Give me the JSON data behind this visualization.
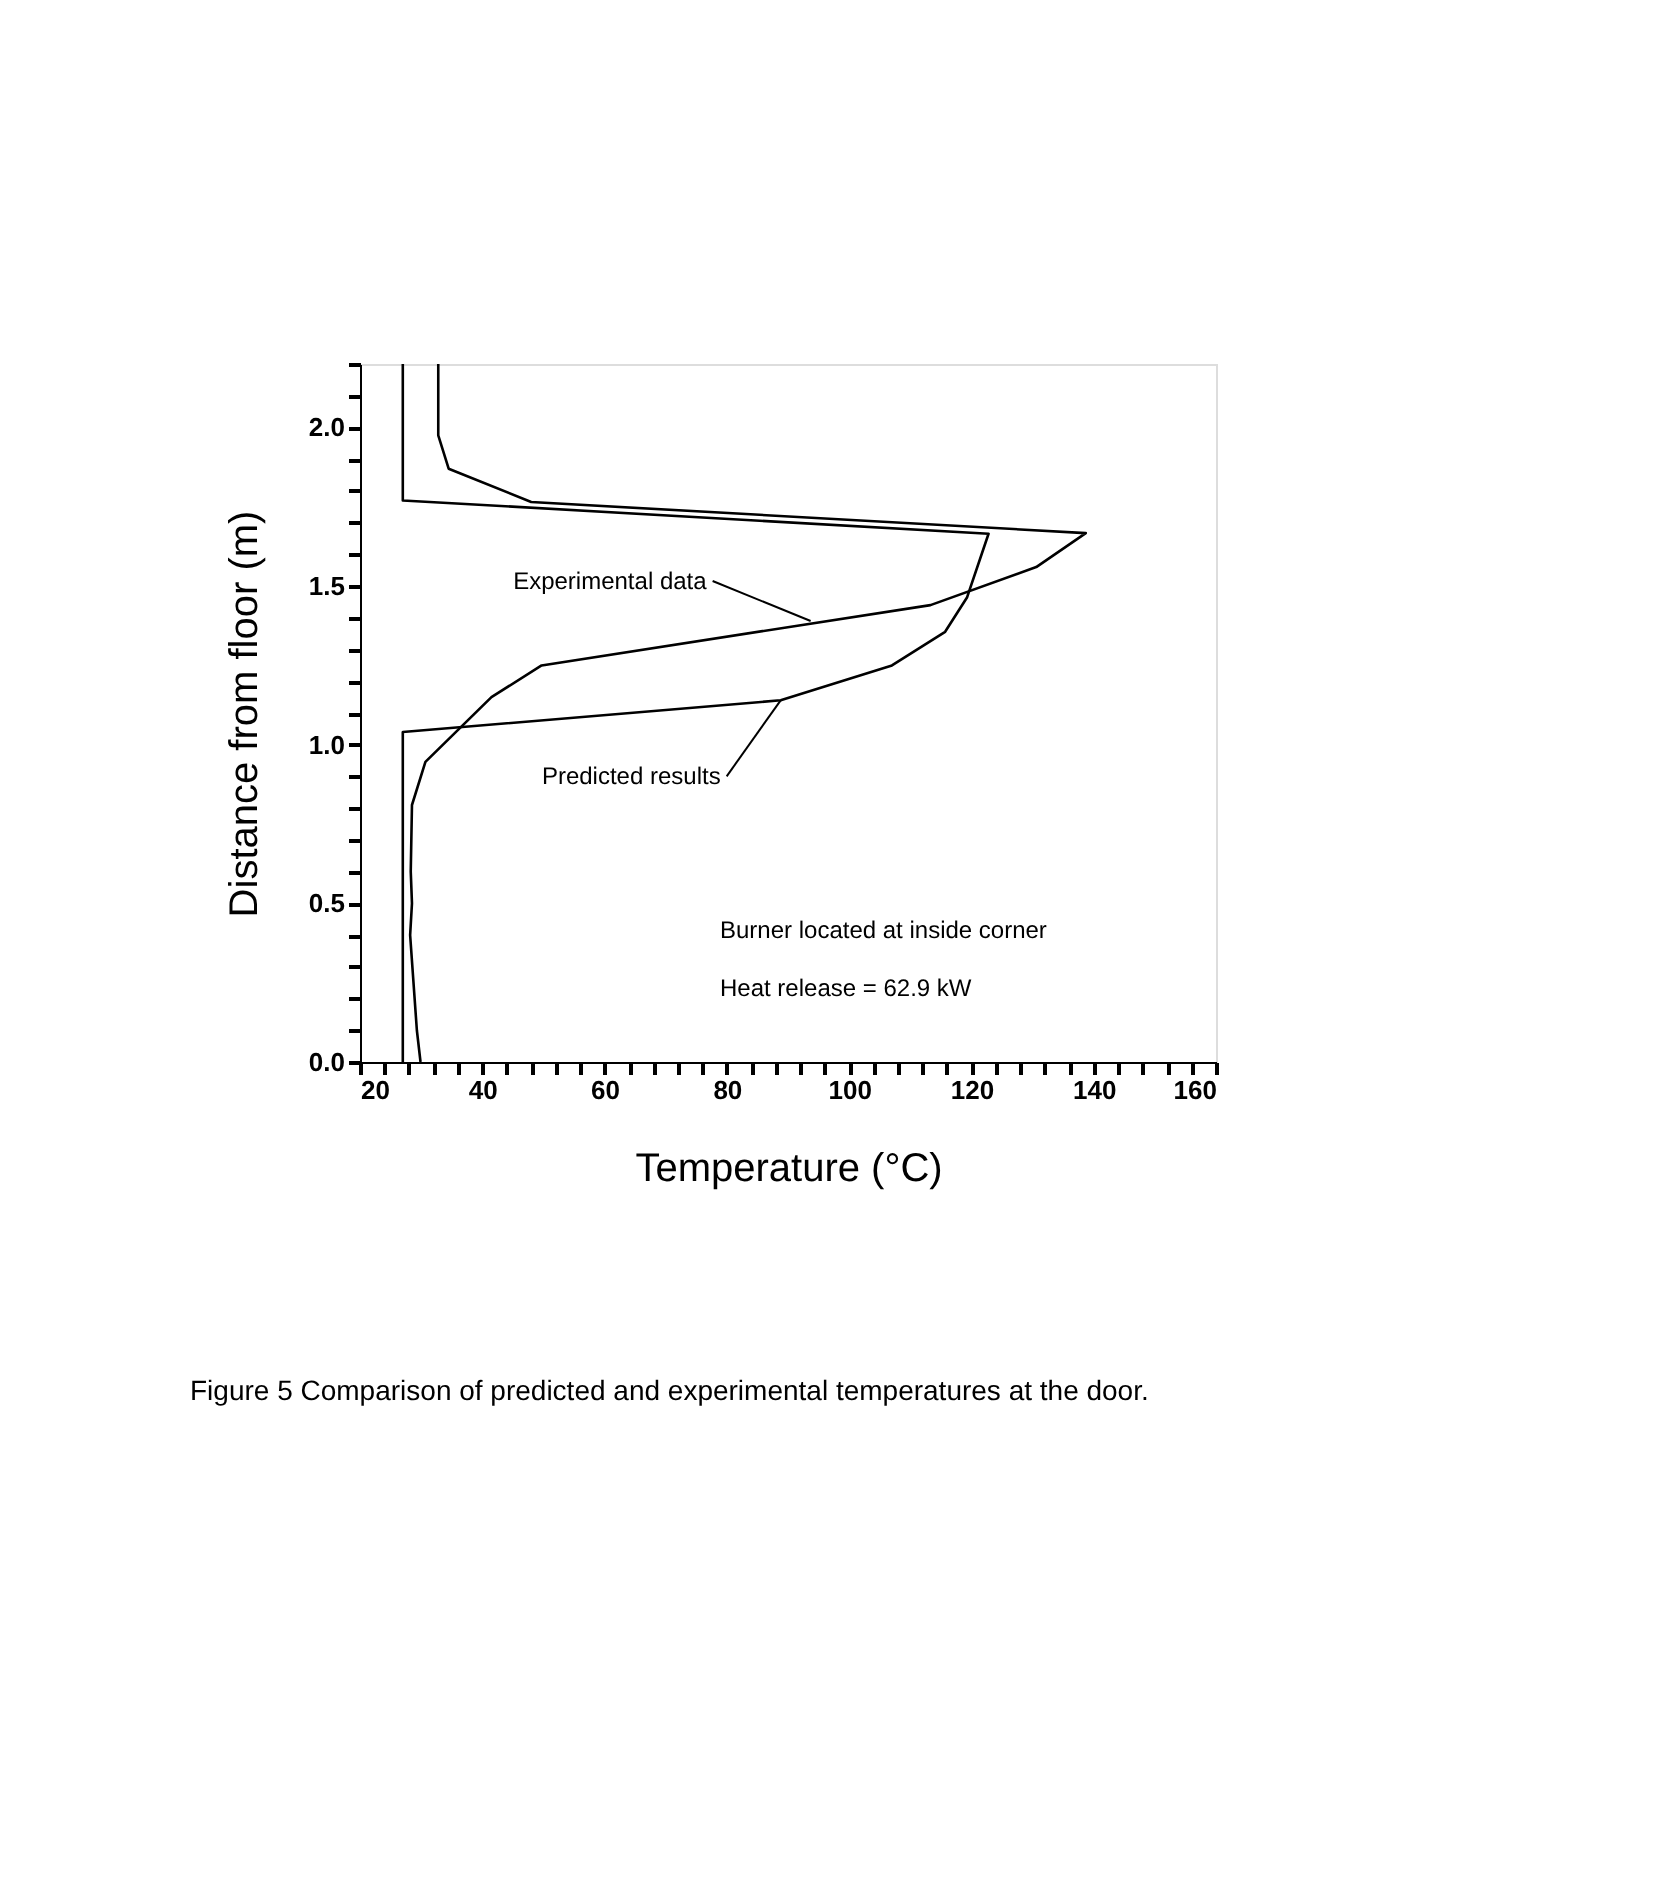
{
  "chart_data": {
    "type": "line",
    "xlabel": "Temperature (°C)",
    "ylabel": "Distance from floor (m)",
    "xlim": [
      20,
      160
    ],
    "ylim": [
      0,
      2.2
    ],
    "xticks": [
      20,
      {
        "value": 24,
        "label": null
      },
      {
        "value": 28,
        "label": null
      },
      {
        "value": 32,
        "label": null
      },
      {
        "value": 36,
        "label": null
      },
      40,
      {
        "value": 44,
        "label": null
      },
      {
        "value": 48,
        "label": null
      },
      {
        "value": 52,
        "label": null
      },
      {
        "value": 56,
        "label": null
      },
      60,
      {
        "value": 64,
        "label": null
      },
      {
        "value": 68,
        "label": null
      },
      {
        "value": 72,
        "label": null
      },
      {
        "value": 76,
        "label": null
      },
      80,
      {
        "value": 84,
        "label": null
      },
      {
        "value": 88,
        "label": null
      },
      {
        "value": 92,
        "label": null
      },
      {
        "value": 96,
        "label": null
      },
      100,
      {
        "value": 104,
        "label": null
      },
      {
        "value": 108,
        "label": null
      },
      {
        "value": 112,
        "label": null
      },
      {
        "value": 116,
        "label": null
      },
      120,
      {
        "value": 124,
        "label": null
      },
      {
        "value": 128,
        "label": null
      },
      {
        "value": 132,
        "label": null
      },
      {
        "value": 136,
        "label": null
      },
      140,
      {
        "value": 144,
        "label": null
      },
      {
        "value": 148,
        "label": null
      },
      {
        "value": 152,
        "label": null
      },
      {
        "value": 156,
        "label": null
      },
      160
    ],
    "yticks": [
      {
        "value": 0,
        "label": "0.0"
      },
      {
        "value": 0.1,
        "label": null
      },
      {
        "value": 0.2,
        "label": null
      },
      {
        "value": 0.3,
        "label": null
      },
      {
        "value": 0.4,
        "label": null
      },
      0.5,
      {
        "value": 0.6,
        "label": null
      },
      {
        "value": 0.7,
        "label": null
      },
      {
        "value": 0.8,
        "label": null
      },
      {
        "value": 0.9,
        "label": null
      },
      {
        "value": 1,
        "label": "1.0"
      },
      {
        "value": 1.1,
        "label": null
      },
      {
        "value": 1.2,
        "label": null
      },
      {
        "value": 1.3,
        "label": null
      },
      {
        "value": 1.4,
        "label": null
      },
      1.5,
      {
        "value": 1.6,
        "label": null
      },
      {
        "value": 1.7,
        "label": null
      },
      {
        "value": 1.8,
        "label": null
      },
      {
        "value": 1.9,
        "label": null
      },
      {
        "value": 2,
        "label": "2.0"
      },
      {
        "value": 2.1,
        "label": null
      },
      {
        "value": 2.2,
        "label": null
      }
    ],
    "grid": false,
    "marker": "none",
    "line_style": "solid",
    "series": [
      {
        "color": "#000000",
        "x": [
          32.8,
          32.8,
          34.5,
          48,
          138.7,
          130.6,
          113.3,
          49.7,
          41.5,
          30.7,
          28.5,
          28.3,
          28.5,
          28.2,
          29.3,
          29.9
        ],
        "values": [
          2.2,
          1.975,
          1.87,
          1.765,
          1.667,
          1.56,
          1.44,
          1.25,
          1.15,
          0.946,
          0.81,
          0.6,
          0.5,
          0.4,
          0.1,
          0
        ]
      },
      {
        "color": "#000000",
        "x": [
          27,
          27,
          88.8,
          107,
          115.7,
          119.3,
          122.8,
          27,
          27
        ],
        "values": [
          0,
          1.04,
          1.14,
          1.25,
          1.356,
          1.465,
          1.665,
          1.77,
          2.2
        ]
      }
    ],
    "annotations": [
      {
        "text": "Experimental data",
        "x": 93.7,
        "y": 1.39
      },
      {
        "text": "Predicted results",
        "x": 88.8,
        "y": 1.14
      },
      "Burner located at inside corner",
      "Heat release = 62.9 kW",
      "Figure 5  Comparison of predicted and experimental temperatures at the door."
    ]
  }
}
